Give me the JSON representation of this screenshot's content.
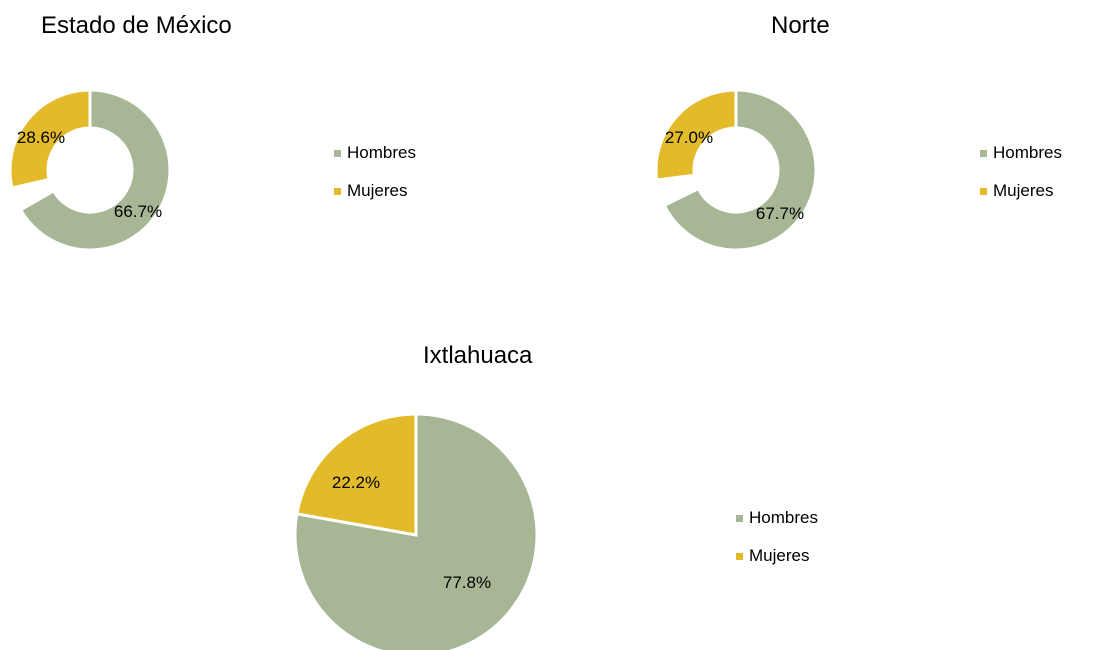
{
  "colors": {
    "hombres": "#a7b694",
    "mujeres": "#e3bb2a",
    "separator": "#ffffff"
  },
  "chart_data": [
    {
      "type": "pie",
      "variant": "donut",
      "title": "Estado de México",
      "categories": [
        "Hombres",
        "Mujeres"
      ],
      "values": [
        66.7,
        28.6
      ],
      "labels": [
        "66.7%",
        "28.6%"
      ],
      "legend": "right"
    },
    {
      "type": "pie",
      "variant": "donut",
      "title": "Norte",
      "categories": [
        "Hombres",
        "Mujeres"
      ],
      "values": [
        67.7,
        27.0
      ],
      "labels": [
        "67.7%",
        "27.0%"
      ],
      "legend": "right"
    },
    {
      "type": "pie",
      "variant": "pie",
      "title": "Ixtlahuaca",
      "categories": [
        "Hombres",
        "Mujeres"
      ],
      "values": [
        77.8,
        22.2
      ],
      "labels": [
        "77.8%",
        "22.2%"
      ],
      "legend": "right"
    }
  ]
}
